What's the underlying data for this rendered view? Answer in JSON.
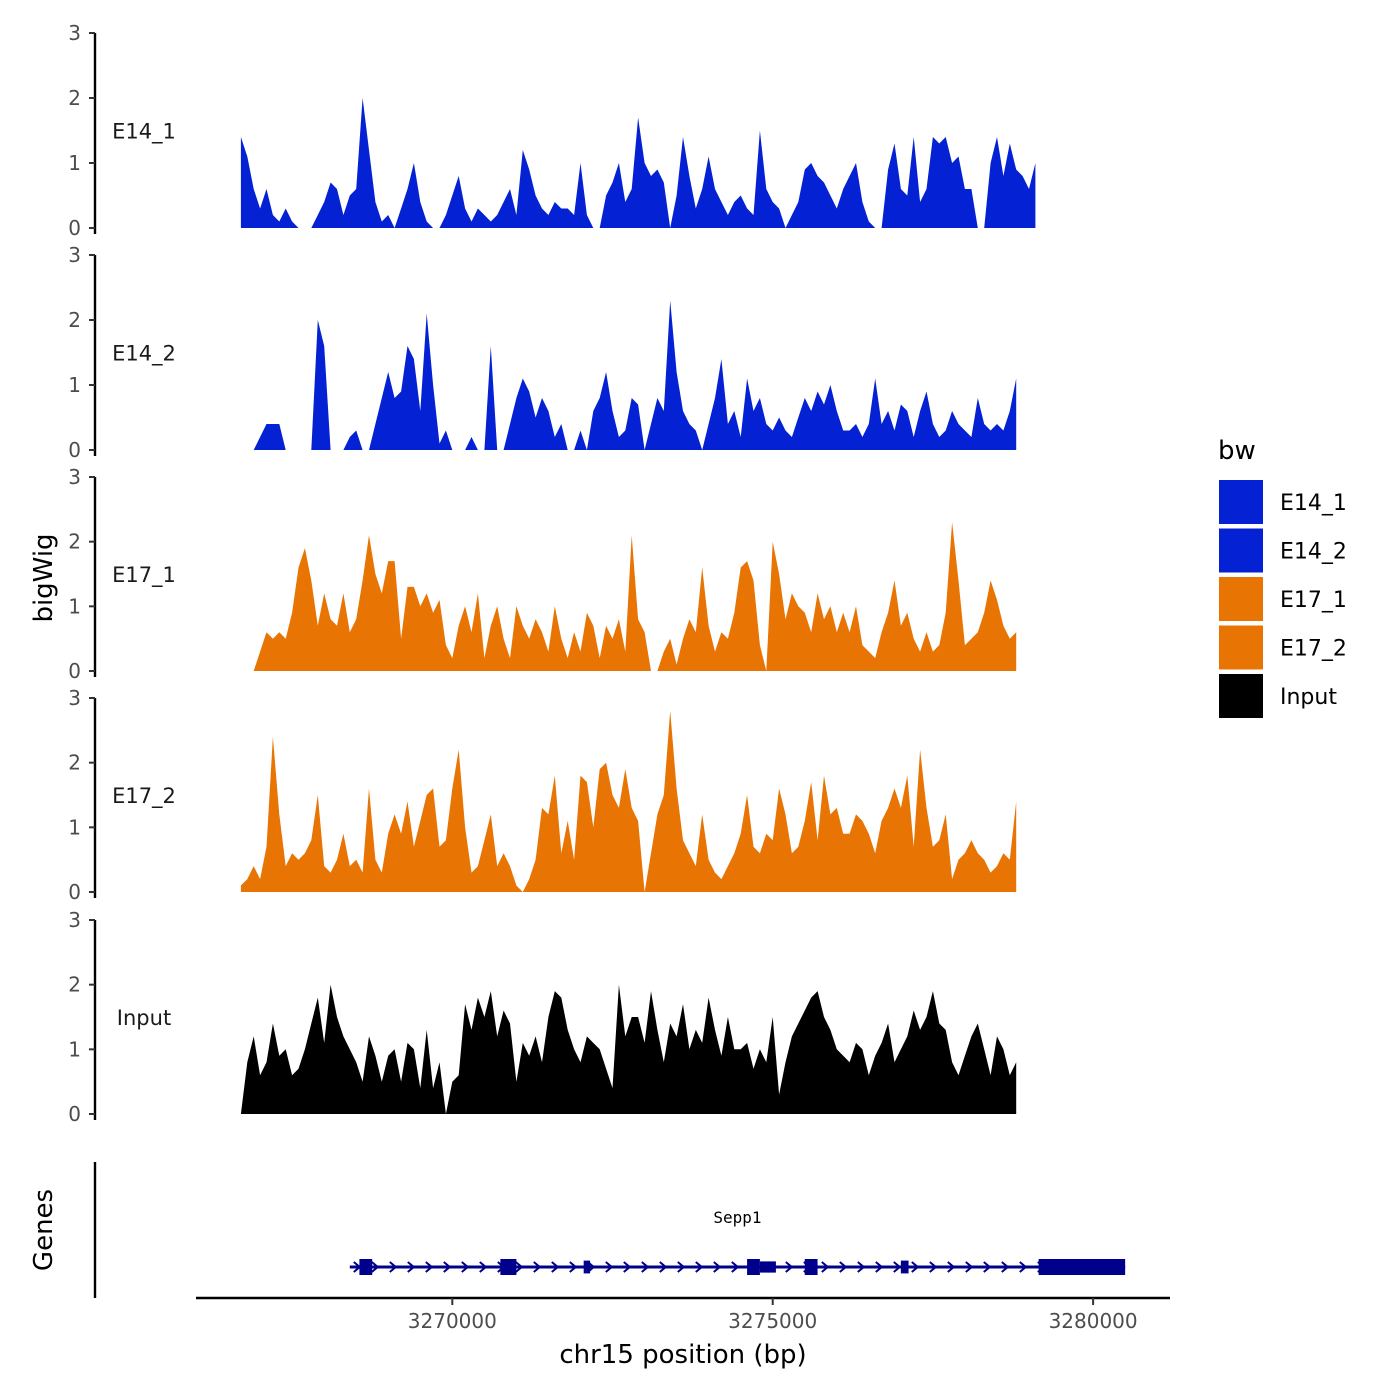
{
  "chart_data": {
    "type": "area",
    "ylabel": "bigWig",
    "xlabel": "chr15 position (bp)",
    "genes_label": "Genes",
    "ylim": [
      0,
      3
    ],
    "y_ticks": [
      "0",
      "1",
      "2",
      "3"
    ],
    "x_range": [
      3266000,
      3281200
    ],
    "x_ticks": [
      {
        "value": 3270000,
        "label": "3270000"
      },
      {
        "value": 3275000,
        "label": "3275000"
      },
      {
        "value": 3280000,
        "label": "3280000"
      }
    ],
    "legend": {
      "title": "bw",
      "entries": [
        {
          "name": "E14_1",
          "color": "#0422d3"
        },
        {
          "name": "E14_2",
          "color": "#0422d3"
        },
        {
          "name": "E17_1",
          "color": "#e87404"
        },
        {
          "name": "E17_2",
          "color": "#e87404"
        },
        {
          "name": "Input",
          "color": "#000000"
        }
      ]
    },
    "data_start": 3266700,
    "data_step": 100,
    "series": [
      {
        "name": "E14_1",
        "color": "#0422d3",
        "values": [
          1.4,
          1.1,
          0.6,
          0.3,
          0.6,
          0.2,
          0.1,
          0.3,
          0.1,
          0,
          0,
          0,
          0.2,
          0.4,
          0.7,
          0.6,
          0.2,
          0.5,
          0.6,
          2.0,
          1.2,
          0.4,
          0.1,
          0.2,
          0,
          0.3,
          0.6,
          1.0,
          0.4,
          0.1,
          0,
          0,
          0.2,
          0.5,
          0.8,
          0.3,
          0.1,
          0.3,
          0.2,
          0.1,
          0.2,
          0.4,
          0.6,
          0.2,
          1.2,
          0.9,
          0.5,
          0.3,
          0.2,
          0.4,
          0.3,
          0.3,
          0.2,
          1.0,
          0.2,
          0,
          0,
          0.5,
          0.7,
          1.0,
          0.4,
          0.6,
          1.7,
          1.0,
          0.8,
          0.9,
          0.7,
          0,
          0.5,
          1.4,
          0.8,
          0.3,
          0.6,
          1.1,
          0.6,
          0.4,
          0.2,
          0.4,
          0.5,
          0.3,
          0.2,
          1.5,
          0.6,
          0.4,
          0.3,
          0,
          0.2,
          0.4,
          0.9,
          1.0,
          0.8,
          0.7,
          0.5,
          0.3,
          0.6,
          0.8,
          1.0,
          0.4,
          0.1,
          0,
          0,
          0.9,
          1.3,
          0.6,
          0.5,
          1.4,
          0.4,
          0.6,
          1.4,
          1.3,
          1.4,
          1.0,
          1.1,
          0.6,
          0.6,
          0,
          0,
          1.0,
          1.4,
          0.8,
          1.3,
          0.9,
          0.8,
          0.6,
          1.0
        ]
      },
      {
        "name": "E14_2",
        "color": "#0422d3",
        "values": [
          0,
          0,
          0,
          0.2,
          0.4,
          0.4,
          0.4,
          0,
          0,
          0,
          0,
          0,
          2.0,
          1.6,
          0,
          0,
          0,
          0.2,
          0.3,
          0,
          0,
          0.4,
          0.8,
          1.2,
          0.8,
          0.9,
          1.6,
          1.4,
          0.6,
          2.1,
          1.0,
          0.1,
          0.3,
          0,
          0,
          0,
          0.2,
          0,
          0,
          1.6,
          0,
          0,
          0.4,
          0.8,
          1.1,
          0.9,
          0.5,
          0.8,
          0.6,
          0.2,
          0.4,
          0,
          0,
          0.3,
          0,
          0.6,
          0.8,
          1.2,
          0.6,
          0.2,
          0.3,
          0.8,
          0.7,
          0,
          0.4,
          0.8,
          0.6,
          2.3,
          1.2,
          0.6,
          0.4,
          0.3,
          0,
          0.4,
          0.8,
          1.4,
          0.4,
          0.6,
          0.2,
          1.1,
          0.6,
          0.8,
          0.4,
          0.3,
          0.5,
          0.3,
          0.2,
          0.5,
          0.8,
          0.6,
          0.9,
          0.7,
          1.0,
          0.6,
          0.3,
          0.3,
          0.4,
          0.2,
          0.4,
          1.1,
          0.4,
          0.6,
          0.3,
          0.7,
          0.6,
          0.2,
          0.6,
          0.9,
          0.4,
          0.2,
          0.3,
          0.6,
          0.4,
          0.3,
          0.2,
          0.8,
          0.4,
          0.3,
          0.4,
          0.3,
          0.6,
          1.1
        ]
      },
      {
        "name": "E17_1",
        "color": "#e87404",
        "values": [
          0,
          0,
          0,
          0.3,
          0.6,
          0.5,
          0.6,
          0.5,
          0.9,
          1.6,
          1.9,
          1.4,
          0.7,
          1.2,
          0.8,
          0.7,
          1.2,
          0.6,
          0.8,
          1.4,
          2.1,
          1.5,
          1.2,
          1.7,
          1.7,
          0.5,
          1.3,
          1.3,
          1.0,
          1.2,
          0.9,
          1.1,
          0.4,
          0.2,
          0.7,
          1.0,
          0.6,
          1.2,
          0.2,
          0.7,
          1.0,
          0.5,
          0.2,
          1.0,
          0.7,
          0.5,
          0.8,
          0.6,
          0.3,
          1.0,
          0.5,
          0.2,
          0.6,
          0.3,
          0.9,
          0.7,
          0.2,
          0.7,
          0.5,
          0.8,
          0.3,
          2.1,
          0.8,
          0.6,
          0,
          0,
          0.3,
          0.5,
          0.1,
          0.5,
          0.8,
          0.6,
          1.6,
          0.7,
          0.3,
          0.6,
          0.5,
          0.9,
          1.6,
          1.7,
          1.4,
          0.4,
          0,
          2.0,
          1.5,
          0.8,
          1.2,
          1.0,
          0.9,
          0.6,
          1.2,
          0.8,
          1.0,
          0.6,
          0.9,
          0.6,
          1.0,
          0.4,
          0.3,
          0.2,
          0.6,
          0.9,
          1.4,
          0.7,
          0.9,
          0.5,
          0.3,
          0.6,
          0.3,
          0.4,
          0.9,
          2.3,
          1.4,
          0.4,
          0.5,
          0.6,
          0.9,
          1.4,
          1.1,
          0.7,
          0.5,
          0.6
        ]
      },
      {
        "name": "E17_2",
        "color": "#e87404",
        "values": [
          0.1,
          0.2,
          0.4,
          0.2,
          0.7,
          2.4,
          1.2,
          0.4,
          0.6,
          0.5,
          0.6,
          0.8,
          1.5,
          0.4,
          0.3,
          0.5,
          0.9,
          0.4,
          0.5,
          0.3,
          1.6,
          0.5,
          0.3,
          0.9,
          1.2,
          0.9,
          1.4,
          0.7,
          1.1,
          1.5,
          1.6,
          0.7,
          0.8,
          1.6,
          2.2,
          1.0,
          0.3,
          0.4,
          0.8,
          1.2,
          0.4,
          0.6,
          0.4,
          0.1,
          0,
          0.2,
          0.5,
          1.3,
          1.2,
          1.8,
          0.6,
          1.1,
          0.5,
          1.8,
          1.7,
          1.0,
          1.9,
          2.0,
          1.5,
          1.3,
          1.9,
          1.3,
          1.1,
          0,
          0.6,
          1.2,
          1.5,
          2.8,
          1.6,
          0.8,
          0.6,
          0.4,
          1.2,
          0.5,
          0.3,
          0.2,
          0.4,
          0.6,
          0.9,
          1.5,
          0.7,
          0.6,
          0.9,
          0.8,
          1.6,
          1.2,
          0.6,
          0.7,
          1.1,
          1.7,
          0.8,
          1.8,
          1.2,
          1.3,
          0.9,
          0.9,
          1.2,
          1.1,
          0.9,
          0.6,
          1.1,
          1.3,
          1.6,
          1.3,
          1.8,
          0.7,
          2.2,
          1.3,
          0.7,
          0.8,
          1.2,
          0.2,
          0.5,
          0.6,
          0.8,
          0.6,
          0.5,
          0.3,
          0.4,
          0.6,
          0.5,
          1.4
        ]
      },
      {
        "name": "Input",
        "color": "#000000",
        "values": [
          0,
          0.8,
          1.2,
          0.6,
          0.8,
          1.4,
          0.9,
          1.0,
          0.6,
          0.7,
          1.0,
          1.4,
          1.8,
          1.1,
          2.0,
          1.5,
          1.2,
          1.0,
          0.8,
          0.5,
          1.2,
          0.9,
          0.5,
          0.9,
          1.0,
          0.5,
          1.1,
          1.0,
          0.4,
          1.3,
          0.4,
          0.8,
          0,
          0.5,
          0.6,
          1.7,
          1.3,
          1.8,
          1.5,
          1.9,
          1.2,
          1.6,
          1.4,
          0.5,
          1.1,
          0.9,
          1.2,
          0.8,
          1.5,
          1.9,
          1.8,
          1.3,
          1.0,
          0.8,
          1.2,
          1.1,
          1.0,
          0.7,
          0.4,
          2.0,
          1.2,
          1.5,
          1.5,
          1.1,
          1.9,
          1.3,
          0.8,
          1.4,
          1.2,
          1.7,
          1.0,
          1.3,
          1.1,
          1.8,
          1.3,
          0.9,
          1.5,
          1.0,
          1.0,
          1.1,
          0.7,
          1.0,
          0.8,
          1.5,
          0.3,
          0.8,
          1.2,
          1.4,
          1.6,
          1.8,
          1.9,
          1.5,
          1.3,
          1.0,
          0.9,
          0.8,
          1.1,
          1.0,
          0.6,
          0.9,
          1.1,
          1.4,
          0.8,
          1.0,
          1.2,
          1.6,
          1.3,
          1.5,
          1.9,
          1.4,
          1.3,
          0.8,
          0.6,
          0.9,
          1.2,
          1.4,
          1.0,
          0.6,
          1.2,
          1.0,
          0.6,
          0.8
        ]
      }
    ],
    "gene": {
      "name": "Sepp1",
      "color": "#00008b",
      "start": 3268400,
      "end": 3280500,
      "exons": [
        {
          "start": 3268550,
          "end": 3268750
        },
        {
          "start": 3270750,
          "end": 3271000
        },
        {
          "start": 3272050,
          "end": 3272150
        },
        {
          "start": 3274600,
          "end": 3274800
        },
        {
          "start": 3274800,
          "end": 3275050
        },
        {
          "start": 3275500,
          "end": 3275700
        },
        {
          "start": 3277000,
          "end": 3277120
        },
        {
          "start": 3279150,
          "end": 3280500
        }
      ],
      "exon_heights": [
        1,
        1,
        0.8,
        1,
        0.7,
        1,
        0.8,
        1
      ]
    }
  }
}
